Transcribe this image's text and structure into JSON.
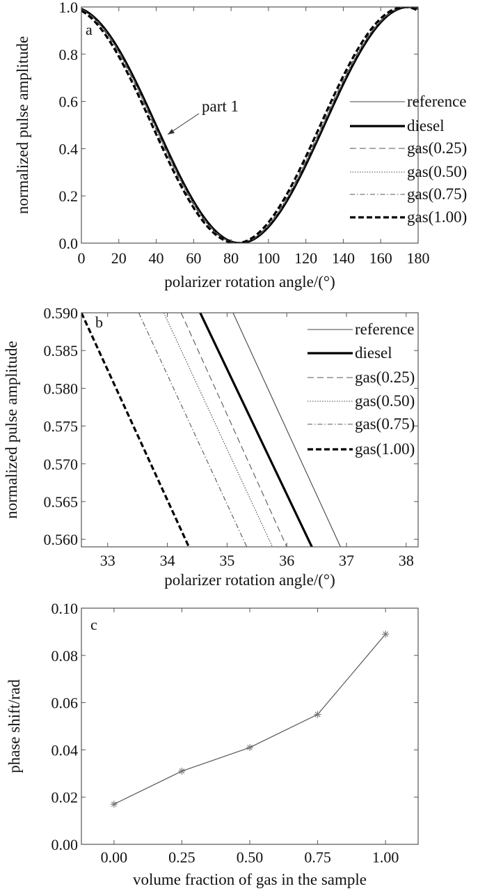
{
  "chart_data": [
    {
      "panel": "a",
      "type": "line",
      "panel_label": "a",
      "xlabel": "polarizer rotation angle/(°)",
      "ylabel": "normalized pulse amplitude",
      "xlim": [
        0,
        180
      ],
      "ylim": [
        0,
        1
      ],
      "xticks": [
        "0",
        "20",
        "40",
        "60",
        "80",
        "100",
        "120",
        "140",
        "160",
        "180"
      ],
      "xtick_values": [
        0,
        20,
        40,
        60,
        80,
        100,
        120,
        140,
        160,
        180
      ],
      "yticks": [
        "0.0",
        "0.2",
        "0.4",
        "0.6",
        "0.8",
        "1.0"
      ],
      "ytick_values": [
        0,
        0.2,
        0.4,
        0.6,
        0.8,
        1.0
      ],
      "model": "y = cos^2(x - peak_deg)",
      "annotation": {
        "text": "part 1",
        "points_to": [
          45,
          0.45
        ]
      },
      "legend_position": "right",
      "series": [
        {
          "name": "reference",
          "peak_deg": 175.3,
          "style": "thin-solid"
        },
        {
          "name": "diesel",
          "peak_deg": 174.75,
          "style": "thick-solid"
        },
        {
          "name": "gas(0.25)",
          "peak_deg": 174.4,
          "style": "dashed"
        },
        {
          "name": "gas(0.50)",
          "peak_deg": 174.15,
          "style": "dotted"
        },
        {
          "name": "gas(0.75)",
          "peak_deg": 173.7,
          "style": "dash-dot"
        },
        {
          "name": "gas(1.00)",
          "peak_deg": 172.75,
          "style": "thick-dashed"
        }
      ]
    },
    {
      "panel": "b",
      "type": "line",
      "panel_label": "b",
      "xlabel": "polarizer rotation angle/(°)",
      "ylabel": "normalized pulse amplitude",
      "xlim": [
        32.56,
        38.2
      ],
      "ylim": [
        0.559,
        0.59
      ],
      "xticks": [
        "33",
        "34",
        "35",
        "36",
        "37",
        "38"
      ],
      "xtick_values": [
        33,
        34,
        35,
        36,
        37,
        38
      ],
      "yticks": [
        "0.560",
        "0.565",
        "0.570",
        "0.575",
        "0.580",
        "0.585",
        "0.590"
      ],
      "ytick_values": [
        0.56,
        0.565,
        0.57,
        0.575,
        0.58,
        0.585,
        0.59
      ],
      "legend_position": "top-right",
      "series": [
        {
          "name": "reference",
          "points": [
            [
              35.1,
              0.59
            ],
            [
              36.9,
              0.559
            ]
          ],
          "style": "thin-solid"
        },
        {
          "name": "diesel",
          "points": [
            [
              34.55,
              0.59
            ],
            [
              36.42,
              0.559
            ]
          ],
          "style": "thick-solid"
        },
        {
          "name": "gas(0.25)",
          "points": [
            [
              34.23,
              0.59
            ],
            [
              36.0,
              0.559
            ]
          ],
          "style": "dashed"
        },
        {
          "name": "gas(0.50)",
          "points": [
            [
              33.94,
              0.59
            ],
            [
              35.76,
              0.559
            ]
          ],
          "style": "dotted"
        },
        {
          "name": "gas(0.75)",
          "points": [
            [
              33.52,
              0.59
            ],
            [
              35.33,
              0.559
            ]
          ],
          "style": "dash-dot"
        },
        {
          "name": "gas(1.00)",
          "points": [
            [
              32.56,
              0.59
            ],
            [
              34.36,
              0.559
            ]
          ],
          "style": "thick-dashed"
        }
      ]
    },
    {
      "panel": "c",
      "type": "line",
      "panel_label": "c",
      "xlabel": "volume fraction of gas in the sample",
      "ylabel": "phase shift/rad",
      "xlim": [
        -0.12,
        1.12
      ],
      "ylim": [
        0,
        0.1
      ],
      "xticks": [
        "0.00",
        "0.25",
        "0.50",
        "0.75",
        "1.00"
      ],
      "xtick_values": [
        0,
        0.25,
        0.5,
        0.75,
        1.0
      ],
      "yticks": [
        "0.00",
        "0.02",
        "0.04",
        "0.06",
        "0.08",
        "0.10"
      ],
      "ytick_values": [
        0,
        0.02,
        0.04,
        0.06,
        0.08,
        0.1
      ],
      "marker": "asterisk",
      "series": [
        {
          "name": "phase shift",
          "x": [
            0,
            0.25,
            0.5,
            0.75,
            1.0
          ],
          "y": [
            0.017,
            0.031,
            0.041,
            0.055,
            0.089
          ]
        }
      ]
    }
  ]
}
